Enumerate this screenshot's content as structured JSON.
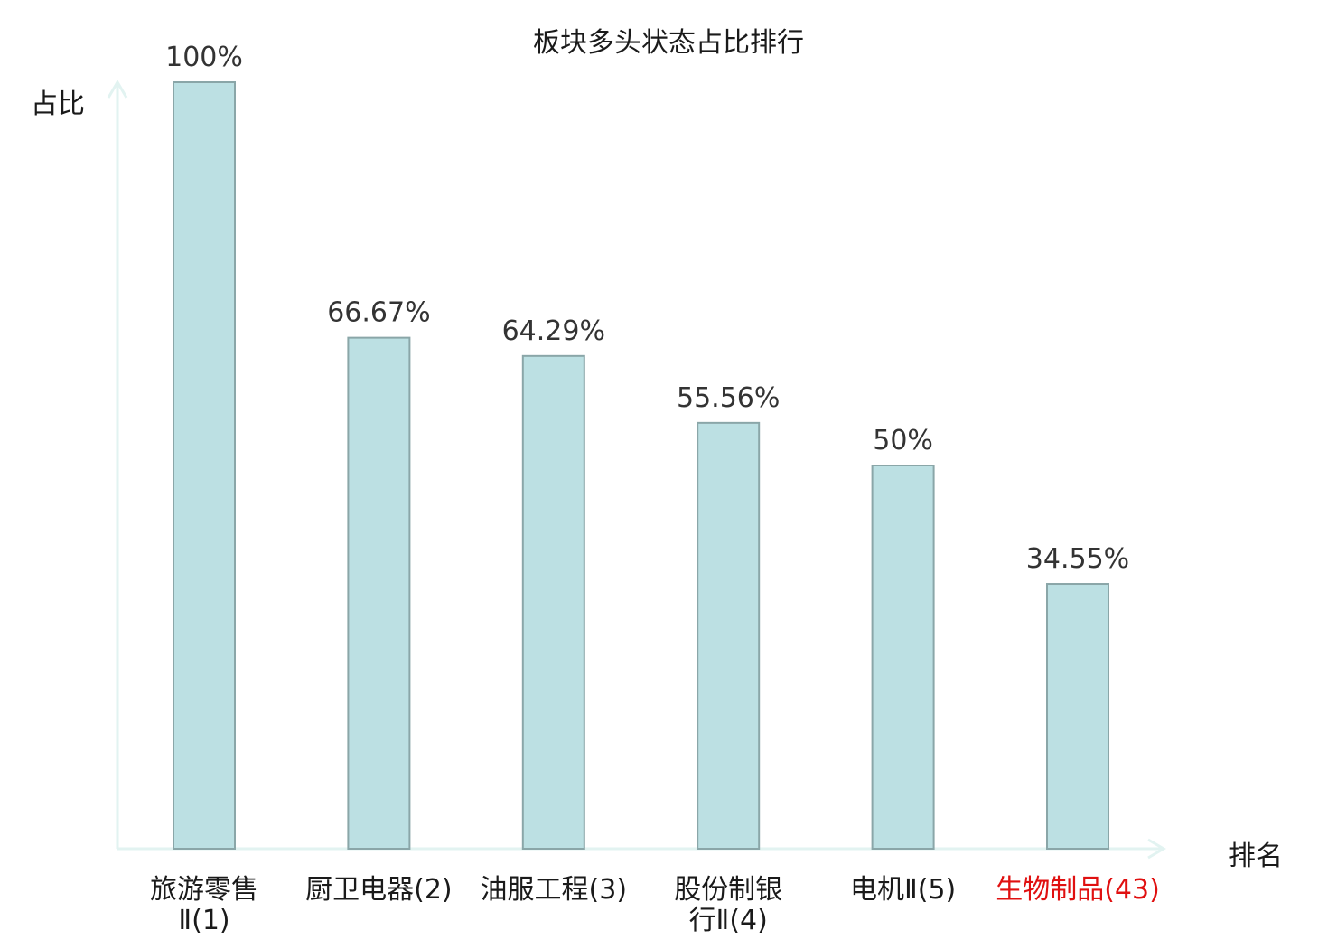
{
  "chart_data": {
    "type": "bar",
    "title": "板块多头状态占比排行",
    "xlabel": "排名",
    "ylabel": "占比",
    "ylim": [
      0,
      100
    ],
    "grid": false,
    "categories": [
      {
        "lines": [
          "旅游零售",
          "Ⅱ(1)"
        ],
        "highlight": false
      },
      {
        "lines": [
          "厨卫电器(2)"
        ],
        "highlight": false
      },
      {
        "lines": [
          "油服工程(3)"
        ],
        "highlight": false
      },
      {
        "lines": [
          "股份制银",
          "行Ⅱ(4)"
        ],
        "highlight": false
      },
      {
        "lines": [
          "电机Ⅱ(5)"
        ],
        "highlight": false
      },
      {
        "lines": [
          "生物制品(43)"
        ],
        "highlight": true
      }
    ],
    "values": [
      100,
      66.67,
      64.29,
      55.56,
      50,
      34.55
    ],
    "value_labels": [
      "100%",
      "66.67%",
      "64.29%",
      "55.56%",
      "50%",
      "34.55%"
    ],
    "colors": {
      "bar_fill": "#bce0e3",
      "bar_stroke": "#8aa6a8",
      "axis": "#e2f3f1",
      "label_text": "#1a1a1a",
      "value_text": "#333333",
      "highlight_text": "#e01010"
    }
  }
}
